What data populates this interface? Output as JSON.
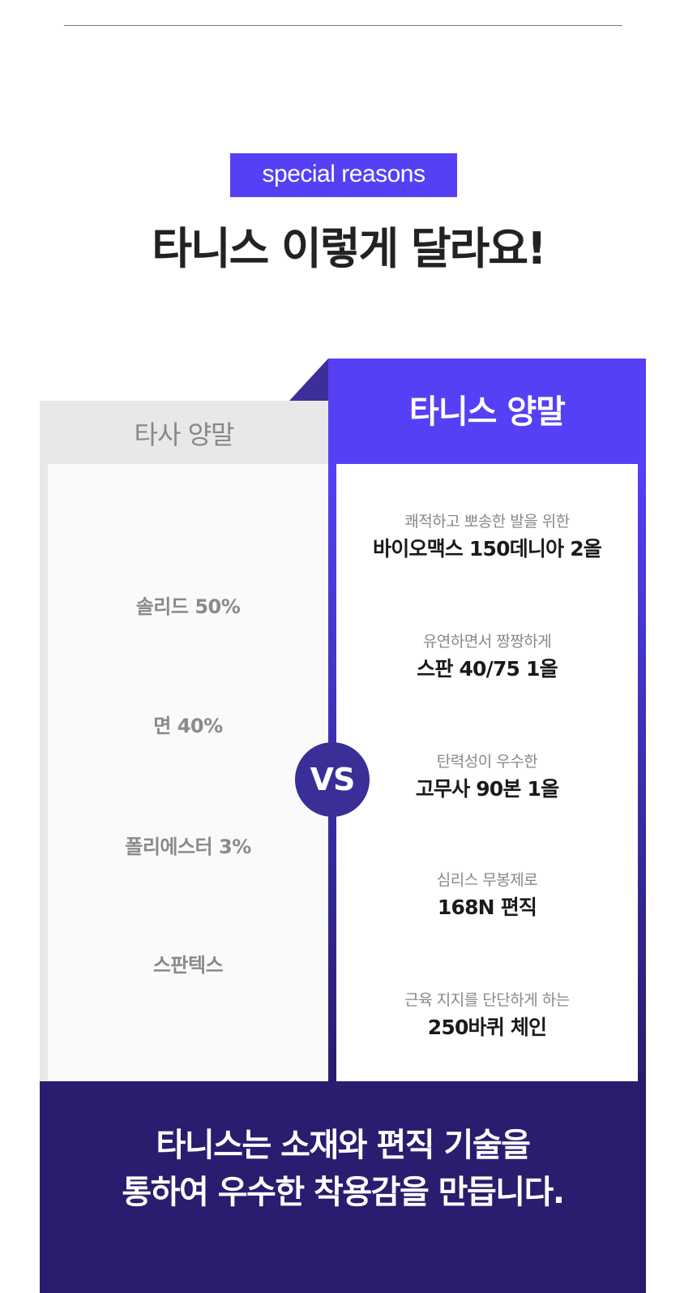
{
  "badge": "special reasons",
  "title": {
    "normal": "타니스 이렇게 ",
    "bold": "달라요!"
  },
  "left": {
    "header": "타사 양말",
    "items": [
      "솔리드 50%",
      "면 40%",
      "폴리에스터 3%",
      "스판텍스"
    ]
  },
  "right": {
    "header": "타니스 양말",
    "items": [
      {
        "sub": "쾌적하고 뽀송한 발을 위한",
        "main": "바이오맥스 150데니아 2올"
      },
      {
        "sub": "유연하면서 짱짱하게",
        "main": "스판 40/75 1올"
      },
      {
        "sub": "탄력성이 우수한",
        "main": "고무사 90본 1올"
      },
      {
        "sub": "심리스 무봉제로",
        "main": "168N 편직"
      },
      {
        "sub": "근육 지지를 단단하게 하는",
        "main": "250바퀴 체인"
      }
    ]
  },
  "vs": "VS",
  "footer": {
    "line1": "타니스는 소재와 편직 기술을",
    "line2": "통하여 우수한 착용감을 만듭니다."
  },
  "colors": {
    "accent": "#5540f5",
    "dark": "#281d6e"
  }
}
